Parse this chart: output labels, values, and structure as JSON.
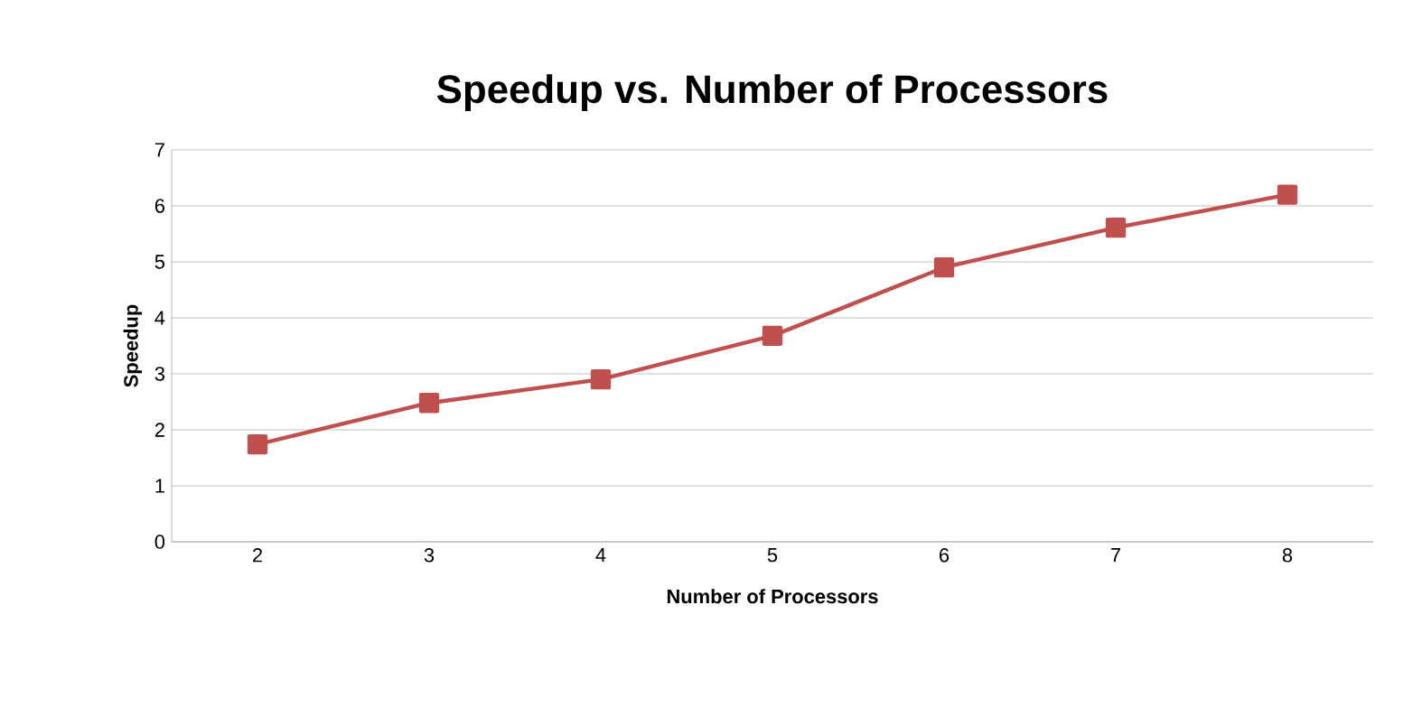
{
  "chart_data": {
    "type": "line",
    "title": "Speedup vs. Number of Processors",
    "xlabel": "Number of Processors",
    "ylabel": "Speedup",
    "categories": [
      "2",
      "3",
      "4",
      "5",
      "6",
      "7",
      "8"
    ],
    "series": [
      {
        "color": "#c0504d",
        "values": [
          1.74,
          2.48,
          2.9,
          3.68,
          4.9,
          5.61,
          6.2
        ]
      }
    ],
    "ylim": [
      0,
      7
    ],
    "yticks": [
      0,
      1,
      2,
      3,
      4,
      5,
      6,
      7
    ],
    "grid": "y",
    "marker": "square",
    "line_style": "solid"
  }
}
